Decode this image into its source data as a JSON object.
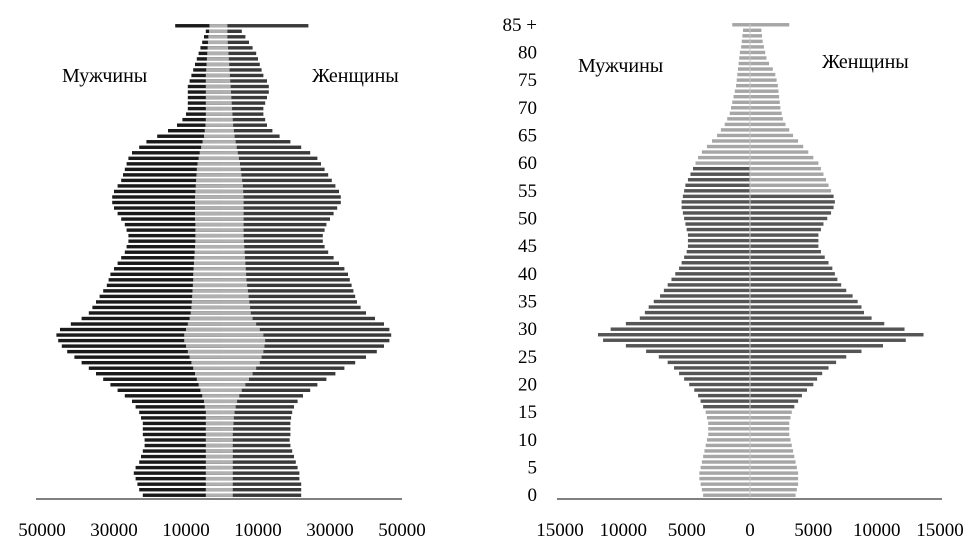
{
  "chart_data": [
    {
      "type": "bar",
      "orientation": "horizontal",
      "layout": "population-pyramid",
      "stacked": "overlay",
      "xlim": [
        -50000,
        50000
      ],
      "xticks": [
        "50000",
        "30000",
        "10000",
        "10000",
        "30000",
        "50000"
      ],
      "xtick_values": [
        -50000,
        -30000,
        -10000,
        10000,
        30000,
        50000
      ],
      "left_label": "Мужчины",
      "right_label": "Женщины",
      "ages_count": 86,
      "series": [
        {
          "role": "total",
          "color": "#1a1a1a",
          "male": [
            22000,
            23000,
            23500,
            24000,
            24500,
            24000,
            23000,
            22500,
            22000,
            21500,
            21500,
            22000,
            22000,
            22000,
            22500,
            23000,
            24000,
            25000,
            27000,
            29000,
            31000,
            33000,
            35000,
            37000,
            39000,
            41000,
            43000,
            44500,
            45500,
            46000,
            45000,
            42000,
            39000,
            37000,
            36000,
            35000,
            34000,
            33000,
            32000,
            31500,
            31000,
            30000,
            29000,
            28000,
            27000,
            26500,
            26000,
            26000,
            26500,
            27000,
            28000,
            29000,
            30000,
            30500,
            30500,
            30000,
            29000,
            28000,
            27500,
            27000,
            26500,
            26000,
            25000,
            23000,
            21000,
            18000,
            15000,
            12500,
            11000,
            10000,
            9500,
            9500,
            9500,
            9500,
            9500,
            9000,
            8500,
            8000,
            7500,
            7000,
            6500,
            6000,
            5500,
            5000,
            4500,
            13000
          ],
          "female": [
            22000,
            22000,
            22000,
            21500,
            21500,
            21000,
            20500,
            20000,
            19500,
            19000,
            18800,
            19000,
            19000,
            19000,
            19200,
            19500,
            20000,
            21000,
            22500,
            24500,
            26500,
            29000,
            31500,
            34000,
            37000,
            40000,
            43000,
            45000,
            46500,
            47000,
            46500,
            45000,
            42500,
            40000,
            38500,
            37500,
            37000,
            36500,
            36000,
            35500,
            35000,
            34000,
            32500,
            31000,
            29500,
            28500,
            28000,
            28000,
            28500,
            29000,
            30000,
            31000,
            32000,
            33000,
            33000,
            32500,
            31500,
            30500,
            29500,
            28500,
            27500,
            26500,
            24500,
            22000,
            19000,
            16000,
            14000,
            12500,
            12000,
            11500,
            11500,
            12000,
            12500,
            13000,
            13000,
            12500,
            11500,
            11000,
            10500,
            10000,
            9500,
            8500,
            7500,
            6500,
            5500,
            24000
          ]
        },
        {
          "role": "urban",
          "color": "#b0b0b0",
          "male": [
            4500,
            4500,
            4500,
            4500,
            4500,
            4500,
            4500,
            4500,
            4500,
            4500,
            4500,
            4500,
            4500,
            4500,
            4500,
            4500,
            4800,
            5000,
            5500,
            6000,
            6500,
            7000,
            7500,
            8000,
            8500,
            9000,
            9500,
            10000,
            10500,
            10500,
            10000,
            9500,
            9000,
            8700,
            8500,
            8400,
            8300,
            8200,
            8100,
            8000,
            8000,
            7900,
            7800,
            7700,
            7600,
            7500,
            7400,
            7400,
            7400,
            7400,
            7500,
            7500,
            7500,
            7500,
            7500,
            7400,
            7300,
            7200,
            7100,
            7000,
            6800,
            6500,
            6200,
            5800,
            5400,
            5000,
            4800,
            4600,
            4500,
            4500,
            4500,
            4500,
            4500,
            4500,
            4500,
            4500,
            4500,
            4400,
            4300,
            4200,
            4100,
            4000,
            3900,
            3800,
            3600,
            3500
          ],
          "female": [
            3000,
            3000,
            3000,
            3000,
            3000,
            3000,
            3000,
            3000,
            3000,
            3000,
            3000,
            3000,
            3100,
            3200,
            3300,
            3500,
            3800,
            4200,
            4800,
            5500,
            6500,
            7500,
            8500,
            9500,
            10500,
            11000,
            11500,
            11800,
            12000,
            11500,
            10500,
            9500,
            8500,
            8000,
            7800,
            7600,
            7400,
            7200,
            7000,
            6800,
            6700,
            6600,
            6500,
            6400,
            6300,
            6200,
            6100,
            6000,
            6000,
            6000,
            6000,
            6000,
            6000,
            6000,
            6000,
            5900,
            5800,
            5600,
            5400,
            5200,
            5000,
            4700,
            4400,
            4100,
            3800,
            3500,
            3300,
            3100,
            3000,
            2900,
            2800,
            2700,
            2600,
            2500,
            2400,
            2300,
            2200,
            2100,
            2000,
            1900,
            1800,
            1700,
            1600,
            1500,
            1500,
            1500
          ]
        }
      ]
    },
    {
      "type": "bar",
      "orientation": "horizontal",
      "layout": "population-pyramid",
      "xlim": [
        -15000,
        15000
      ],
      "xticks": [
        "15000",
        "10000",
        "5000",
        "0",
        "5000",
        "10000",
        "15000"
      ],
      "xtick_values": [
        -15000,
        -10000,
        -5000,
        0,
        5000,
        10000,
        15000
      ],
      "yticks": [
        "0",
        "5",
        "10",
        "15",
        "20",
        "25",
        "30",
        "35",
        "40",
        "45",
        "50",
        "55",
        "60",
        "65",
        "70",
        "75",
        "80",
        "85 +"
      ],
      "left_label": "Мужчины",
      "right_label": "Женщины",
      "colors": {
        "working_age": "#555555",
        "other_ages": "#a6a6a6"
      },
      "working_age_range_male": [
        16,
        59
      ],
      "working_age_range_female": [
        16,
        54
      ],
      "ages_count": 86,
      "male": [
        3700,
        3800,
        3900,
        4000,
        4000,
        3900,
        3800,
        3700,
        3600,
        3500,
        3400,
        3300,
        3300,
        3300,
        3400,
        3500,
        3700,
        3900,
        4100,
        4400,
        4800,
        5200,
        5600,
        6000,
        6500,
        7200,
        8200,
        9800,
        11600,
        12000,
        11000,
        9800,
        8700,
        8300,
        8000,
        7600,
        7100,
        6800,
        6500,
        6200,
        5900,
        5600,
        5400,
        5200,
        5000,
        4900,
        4900,
        4900,
        5000,
        5100,
        5200,
        5300,
        5400,
        5400,
        5300,
        5200,
        5100,
        4900,
        4700,
        4500,
        4300,
        4100,
        3800,
        3400,
        3000,
        2600,
        2300,
        2000,
        1800,
        1600,
        1500,
        1400,
        1300,
        1200,
        1100,
        1050,
        1000,
        950,
        900,
        850,
        800,
        700,
        650,
        600,
        550,
        1400
      ],
      "female": [
        3600,
        3700,
        3800,
        3800,
        3800,
        3700,
        3600,
        3500,
        3400,
        3300,
        3200,
        3100,
        3100,
        3100,
        3200,
        3300,
        3500,
        3800,
        4100,
        4500,
        5000,
        5300,
        5700,
        6200,
        6800,
        7600,
        8800,
        10500,
        12300,
        13700,
        12200,
        10600,
        9600,
        9000,
        8800,
        8500,
        8100,
        7600,
        7200,
        6900,
        6700,
        6500,
        6200,
        5900,
        5600,
        5400,
        5400,
        5400,
        5600,
        5800,
        6100,
        6400,
        6600,
        6700,
        6600,
        6400,
        6200,
        6000,
        5800,
        5600,
        5400,
        5000,
        4600,
        4200,
        3800,
        3400,
        3100,
        2800,
        2600,
        2500,
        2400,
        2350,
        2300,
        2250,
        2200,
        2100,
        2000,
        1800,
        1500,
        1300,
        1200,
        1100,
        1000,
        950,
        900,
        3100
      ]
    }
  ]
}
